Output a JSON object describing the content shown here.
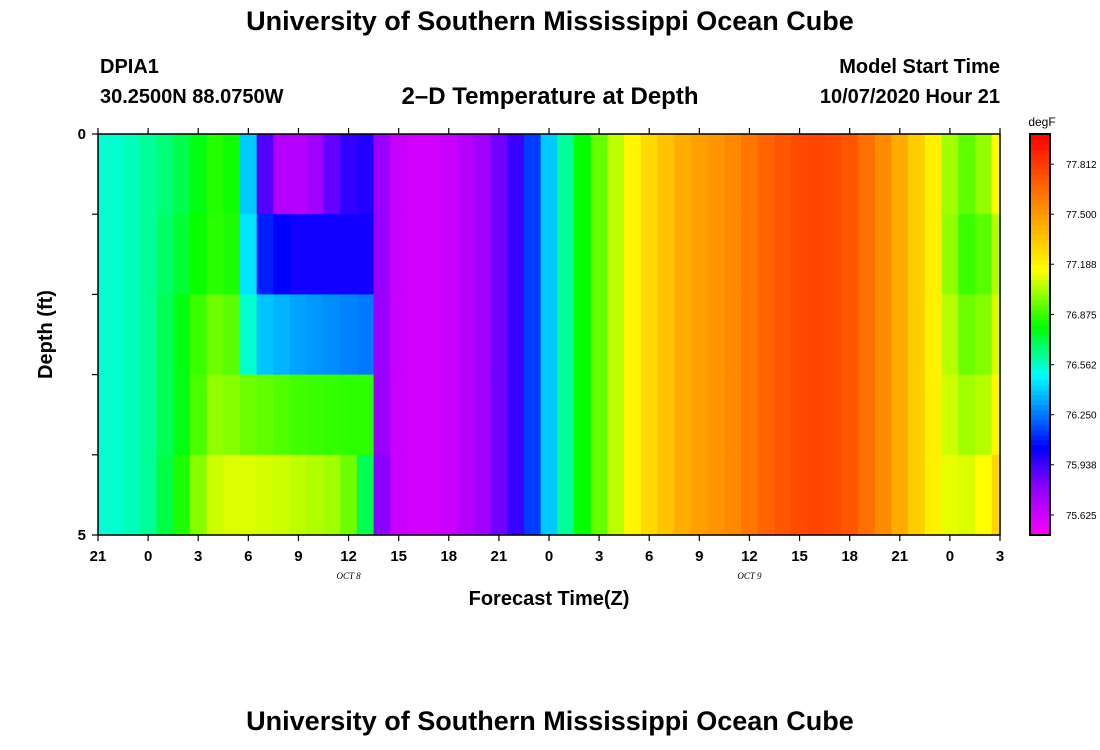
{
  "header": {
    "title": "University of Southern Mississippi Ocean Cube",
    "station_id": "DPIA1",
    "coordinates": "30.2500N 88.0750W",
    "chart_title": "2–D Temperature at Depth",
    "model_label": "Model Start Time",
    "model_time": "10/07/2020 Hour 21"
  },
  "footer": {
    "title": "University of Southern Mississippi Ocean Cube"
  },
  "chart_data": {
    "type": "heatmap",
    "title": "2–D Temperature at Depth",
    "xlabel": "Forecast Time(Z)",
    "ylabel": "Depth (ft)",
    "x_unit": "forecast hour from model start (10/07/2020 21Z)",
    "xlim": [
      0,
      54
    ],
    "x_tick_values": [
      0,
      3,
      6,
      9,
      12,
      15,
      18,
      21,
      24,
      27,
      30,
      33,
      36,
      39,
      42,
      45,
      48,
      51,
      54
    ],
    "x_tick_labels": [
      "21",
      "0",
      "3",
      "6",
      "9",
      "12",
      "15",
      "18",
      "21",
      "0",
      "3",
      "6",
      "9",
      "12",
      "15",
      "18",
      "21",
      "0",
      "3"
    ],
    "date_labels": [
      {
        "x": 15,
        "text": "OCT 8"
      },
      {
        "x": 39,
        "text": "OCT 9"
      }
    ],
    "ylim": [
      0,
      5
    ],
    "y_tick_labels": [
      {
        "y": 0,
        "text": "0"
      },
      {
        "y": 5,
        "text": "5"
      }
    ],
    "y_minor_ticks": [
      1,
      2,
      3,
      4
    ],
    "depth_rows": [
      0.5,
      1.5,
      2.5,
      3.5,
      4.5
    ],
    "x_hours": [
      0,
      1,
      2,
      3,
      4,
      5,
      6,
      7,
      8,
      9,
      10,
      11,
      12,
      13,
      14,
      15,
      16,
      17,
      18,
      19,
      20,
      21,
      22,
      23,
      24,
      25,
      26,
      27,
      28,
      29,
      30,
      31,
      32,
      33,
      34,
      35,
      36,
      37,
      38,
      39,
      40,
      41,
      42,
      43,
      44,
      45,
      46,
      47,
      48,
      49,
      50,
      51,
      52,
      53,
      54
    ],
    "values": [
      [
        76.55,
        76.56,
        76.58,
        76.62,
        76.66,
        76.71,
        76.78,
        76.85,
        76.82,
        76.4,
        75.9,
        75.7,
        75.69,
        75.75,
        75.87,
        75.96,
        75.99,
        75.76,
        75.64,
        75.62,
        75.62,
        75.64,
        75.69,
        75.75,
        75.85,
        75.95,
        76.15,
        76.4,
        76.62,
        76.8,
        76.94,
        77.06,
        77.18,
        77.28,
        77.36,
        77.43,
        77.48,
        77.52,
        77.56,
        77.62,
        77.68,
        77.72,
        77.76,
        77.78,
        77.76,
        77.72,
        77.64,
        77.55,
        77.44,
        77.32,
        77.2,
        77.02,
        76.93,
        77.0,
        77.15
      ],
      [
        76.55,
        76.56,
        76.58,
        76.62,
        76.68,
        76.74,
        76.81,
        76.86,
        76.84,
        76.45,
        76.1,
        76.05,
        76.02,
        76.02,
        76.02,
        76.02,
        76.02,
        75.76,
        75.64,
        75.62,
        75.62,
        75.64,
        75.69,
        75.75,
        75.85,
        75.95,
        76.15,
        76.4,
        76.62,
        76.8,
        76.94,
        77.06,
        77.18,
        77.28,
        77.36,
        77.43,
        77.48,
        77.52,
        77.56,
        77.62,
        77.68,
        77.72,
        77.76,
        77.78,
        77.76,
        77.72,
        77.64,
        77.55,
        77.44,
        77.32,
        77.2,
        77.0,
        76.88,
        76.92,
        77.05
      ],
      [
        76.55,
        76.56,
        76.58,
        76.62,
        76.7,
        76.78,
        76.88,
        76.95,
        76.92,
        76.56,
        76.39,
        76.36,
        76.33,
        76.31,
        76.29,
        76.27,
        76.25,
        75.76,
        75.64,
        75.62,
        75.62,
        75.64,
        75.69,
        75.75,
        75.85,
        75.95,
        76.15,
        76.4,
        76.62,
        76.8,
        76.94,
        77.06,
        77.18,
        77.28,
        77.36,
        77.43,
        77.48,
        77.52,
        77.56,
        77.62,
        77.68,
        77.72,
        77.76,
        77.78,
        77.76,
        77.72,
        77.64,
        77.55,
        77.44,
        77.32,
        77.2,
        77.05,
        76.95,
        76.98,
        77.1
      ],
      [
        76.55,
        76.56,
        76.58,
        76.62,
        76.7,
        76.78,
        76.9,
        77.0,
        76.98,
        76.95,
        76.93,
        76.91,
        76.89,
        76.88,
        76.87,
        76.86,
        76.86,
        75.76,
        75.64,
        75.62,
        75.62,
        75.64,
        75.69,
        75.75,
        75.85,
        75.95,
        76.15,
        76.4,
        76.62,
        76.8,
        76.94,
        77.06,
        77.18,
        77.28,
        77.36,
        77.43,
        77.48,
        77.52,
        77.56,
        77.62,
        77.68,
        77.72,
        77.76,
        77.78,
        77.76,
        77.72,
        77.64,
        77.55,
        77.44,
        77.32,
        77.2,
        77.08,
        77.02,
        77.05,
        77.18
      ],
      [
        76.55,
        76.56,
        76.58,
        76.62,
        76.72,
        76.84,
        76.98,
        77.08,
        77.1,
        77.1,
        77.09,
        77.08,
        77.06,
        77.04,
        77.02,
        76.95,
        76.7,
        75.8,
        75.64,
        75.62,
        75.62,
        75.64,
        75.69,
        75.75,
        75.85,
        75.95,
        76.15,
        76.4,
        76.62,
        76.8,
        76.94,
        77.06,
        77.18,
        77.28,
        77.36,
        77.43,
        77.48,
        77.52,
        77.56,
        77.62,
        77.68,
        77.72,
        77.76,
        77.78,
        77.76,
        77.72,
        77.64,
        77.55,
        77.44,
        77.32,
        77.2,
        77.12,
        77.1,
        77.15,
        77.3
      ]
    ],
    "colorbar": {
      "unit": "degF",
      "range": [
        75.5,
        78.0
      ],
      "tick_labels": [
        "77.812",
        "77.500",
        "77.188",
        "76.875",
        "76.562",
        "76.250",
        "75.938",
        "75.625"
      ],
      "tick_values": [
        77.812,
        77.5,
        77.188,
        76.875,
        76.562,
        76.25,
        75.938,
        75.625
      ]
    }
  }
}
